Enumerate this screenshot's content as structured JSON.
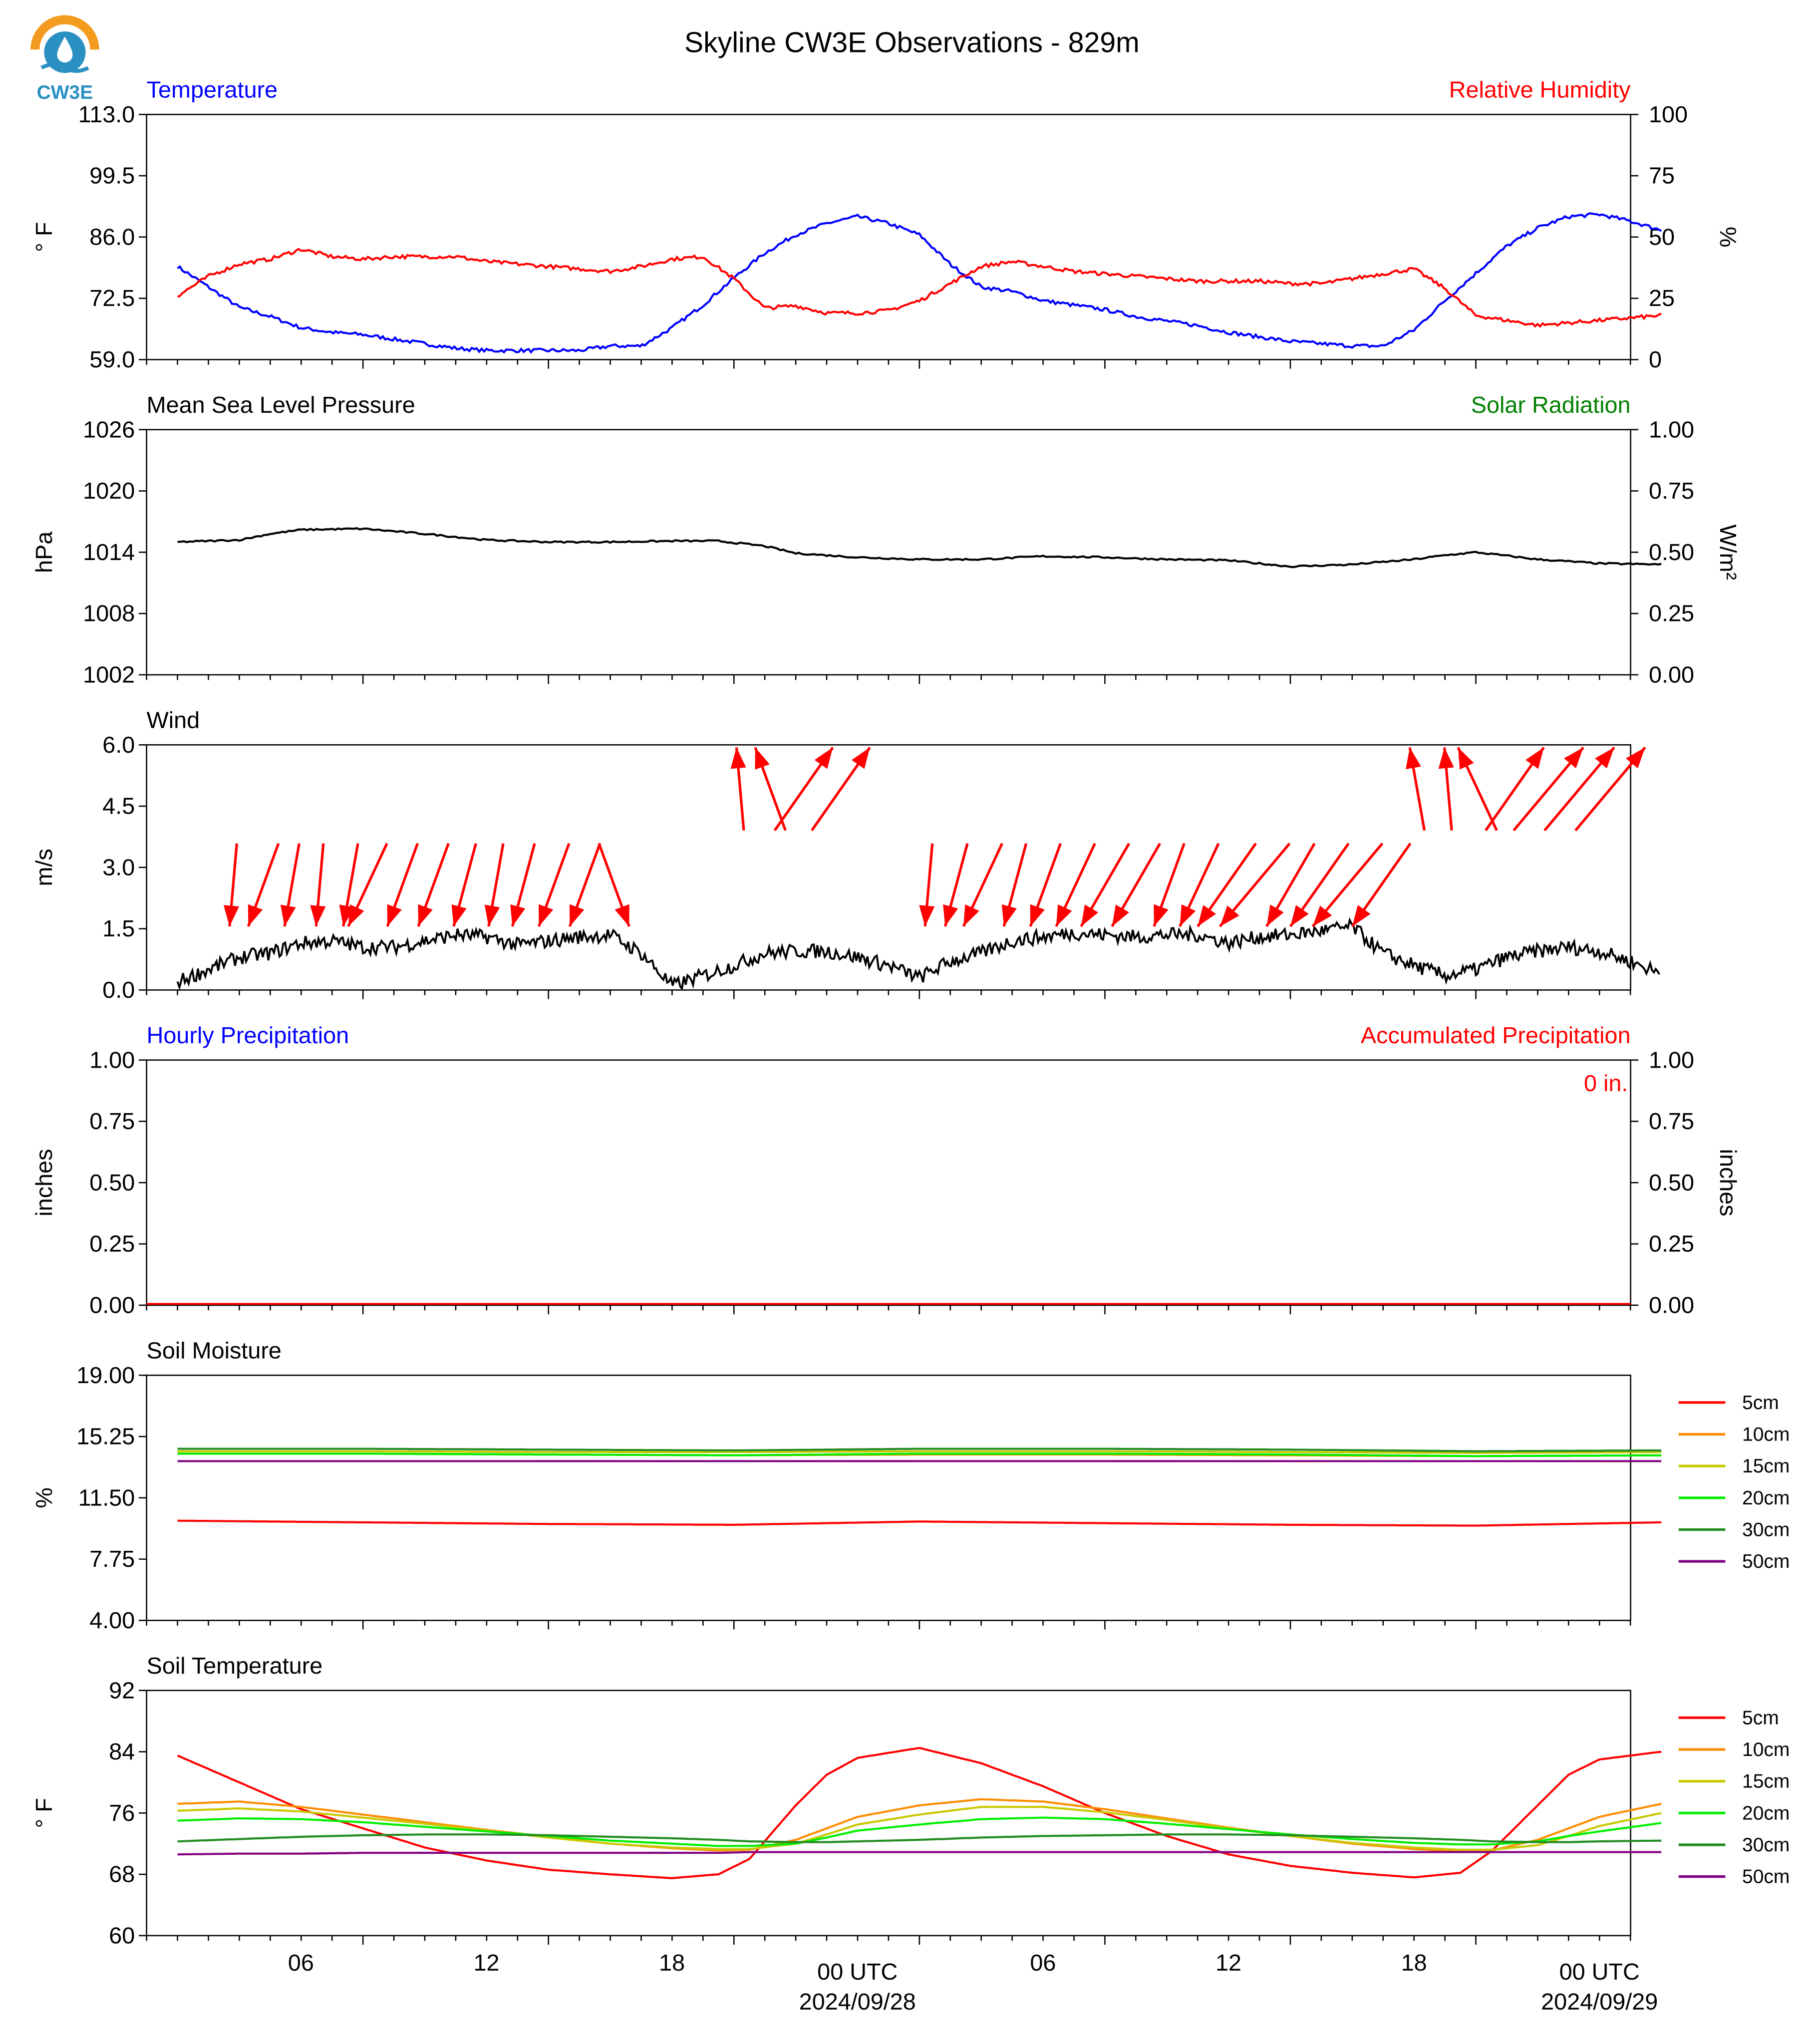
{
  "title": "Skyline CW3E Observations - 829m",
  "logo_text": "CW3E",
  "colors": {
    "temperature": "#0000ff",
    "humidity": "#ff0000",
    "pressure": "#000000",
    "solar": "#008000",
    "wind": "#000000",
    "wind_arrow": "#ff0000",
    "precip_hourly": "#0000ff",
    "precip_accum": "#ff0000",
    "logo_orange": "#f39c1f",
    "logo_blue": "#2a8fc1"
  },
  "x_axis": {
    "tick_labels": [
      "06",
      "12",
      "18",
      "00 UTC",
      "06",
      "12",
      "18",
      "00 UTC"
    ],
    "date_labels": [
      "2024/09/28",
      "2024/09/29"
    ]
  },
  "legend": {
    "depths": [
      "5cm",
      "10cm",
      "15cm",
      "20cm",
      "30cm",
      "50cm"
    ],
    "colors": [
      "#ff0000",
      "#ff8c00",
      "#c8c800",
      "#00ee00",
      "#228b22",
      "#800080"
    ]
  },
  "chart_data": [
    {
      "type": "line",
      "id": "temp_rh",
      "title_left": "Temperature",
      "title_right": "Relative Humidity",
      "ylabel": "° F",
      "ylabel_right": "%",
      "ylim": [
        59.0,
        113.0
      ],
      "yticks": [
        "113.0",
        "99.5",
        "86.0",
        "72.5",
        "59.0"
      ],
      "ylim_right": [
        0,
        100
      ],
      "yticks_right": [
        "100",
        "75",
        "50",
        "25",
        "0"
      ],
      "x_hours": [
        0,
        1,
        2,
        3,
        4,
        5,
        6,
        7,
        8,
        9,
        10,
        11,
        12,
        13,
        14,
        15,
        16,
        17,
        18,
        19,
        20,
        21,
        22,
        23,
        24,
        25,
        26,
        27,
        28,
        29,
        30,
        31,
        32,
        33,
        34,
        35,
        36,
        37,
        38,
        39,
        40,
        41,
        42,
        43,
        44,
        45,
        46,
        47,
        48
      ],
      "series": [
        {
          "name": "Temperature",
          "axis": "left",
          "values": [
            79.5,
            75,
            70.5,
            68.5,
            66,
            65,
            64.5,
            63.5,
            62.5,
            61.5,
            61,
            61,
            61,
            61,
            62,
            62,
            66,
            71,
            77,
            82.5,
            86.5,
            89,
            90.5,
            89,
            86.5,
            80,
            75,
            74,
            72,
            71,
            70,
            68.5,
            67.5,
            66.5,
            65,
            64,
            63,
            62.5,
            62,
            62,
            65.5,
            72,
            78,
            84,
            88,
            90.5,
            91,
            89.5,
            87.5
          ]
        },
        {
          "name": "Relative Humidity",
          "axis": "right",
          "values": [
            26,
            34,
            39,
            41,
            45,
            42,
            41,
            42,
            42,
            42,
            40,
            39,
            38,
            37,
            36,
            38,
            41,
            42,
            33,
            21,
            22,
            19,
            19,
            20,
            24,
            31,
            38,
            40,
            38,
            36,
            35,
            34,
            33,
            32,
            32,
            32,
            31,
            31,
            33,
            35,
            37,
            29,
            18,
            16,
            14,
            15,
            16,
            17,
            18
          ]
        }
      ]
    },
    {
      "type": "line",
      "id": "pressure",
      "title_left": "Mean Sea Level Pressure",
      "title_right": "Solar Radiation",
      "ylabel": "hPa",
      "ylabel_right": "W/m²",
      "ylim": [
        1002,
        1026
      ],
      "yticks": [
        "1026",
        "1020",
        "1014",
        "1008",
        "1002"
      ],
      "ylim_right": [
        0,
        1
      ],
      "yticks_right": [
        "1.00",
        "0.75",
        "0.50",
        "0.25",
        "0.00"
      ],
      "x_hours": [
        0,
        2,
        3,
        4,
        6,
        8,
        10,
        12,
        14,
        16,
        17.5,
        19,
        20,
        22,
        24,
        26,
        28,
        30,
        32,
        34,
        36,
        38,
        40,
        41,
        42,
        44,
        46,
        48
      ],
      "series": [
        {
          "name": "Mean Sea Level Pressure",
          "axis": "left",
          "values": [
            1015,
            1015.2,
            1015.8,
            1016.2,
            1016.3,
            1015.8,
            1015.2,
            1015,
            1015,
            1015.1,
            1015.1,
            1014.6,
            1013.9,
            1013.5,
            1013.3,
            1013.3,
            1013.6,
            1013.5,
            1013.3,
            1013.2,
            1012.6,
            1012.8,
            1013.3,
            1013.7,
            1014,
            1013.3,
            1012.9,
            1012.8
          ]
        }
      ]
    },
    {
      "type": "line",
      "id": "wind",
      "title_left": "Wind",
      "ylabel": "m/s",
      "ylim": [
        0,
        6
      ],
      "yticks": [
        "6.0",
        "4.5",
        "3.0",
        "1.5",
        "0.0"
      ],
      "x_hours": [
        0,
        1,
        2,
        3,
        4,
        5,
        6,
        7,
        8,
        9,
        10,
        11,
        12,
        13,
        14,
        15,
        16,
        17,
        18,
        19,
        20,
        21,
        22,
        23,
        24,
        25,
        26,
        27,
        28,
        29,
        30,
        31,
        32,
        33,
        34,
        35,
        36,
        37,
        38,
        39,
        40,
        41,
        42,
        43,
        44,
        45,
        46,
        47,
        48
      ],
      "series": [
        {
          "name": "Wind speed",
          "axis": "left",
          "values": [
            0.2,
            0.5,
            0.8,
            0.9,
            1.15,
            1.2,
            1.05,
            1.05,
            1.2,
            1.35,
            1.3,
            1.1,
            1.2,
            1.3,
            1.35,
            0.9,
            0.1,
            0.35,
            0.6,
            0.9,
            0.95,
            0.95,
            0.8,
            0.6,
            0.3,
            0.7,
            0.9,
            1.2,
            1.3,
            1.4,
            1.35,
            1.3,
            1.35,
            1.35,
            1.15,
            1.3,
            1.35,
            1.45,
            1.55,
            0.9,
            0.6,
            0.35,
            0.5,
            0.8,
            0.95,
            1.05,
            0.95,
            0.7,
            0.4
          ]
        }
      ],
      "arrows": {
        "note": "direction (degrees the wind blows toward, 0=north/up, 90=east/right) and speed in m/s",
        "x_hours": [
          2,
          3,
          4,
          5,
          6,
          7,
          8,
          9,
          10,
          11,
          12,
          13,
          14,
          15,
          18,
          19,
          20,
          21,
          24,
          25,
          26,
          27,
          28,
          29,
          30,
          31,
          32,
          33,
          34,
          35,
          36,
          37,
          38,
          39,
          40,
          41,
          42,
          43,
          44,
          45,
          46
        ],
        "x_offset": [
          1.8,
          2.8,
          3.7,
          4.6,
          5.6,
          6.2,
          7.3,
          8.3,
          9.3,
          10.3,
          11.2,
          12.2,
          13.2,
          14.1,
          18.2,
          19.2,
          20.1,
          21.3,
          24.3,
          25.2,
          26.1,
          27.1,
          28.1,
          29.1,
          30.1,
          31.1,
          32.1,
          33.1,
          34.1,
          35.1,
          36.1,
          37.1,
          38.1,
          39.1,
          40.1,
          41.1,
          42.1,
          43.1,
          44.1,
          45.1,
          46.1
        ],
        "directions": [
          185,
          200,
          190,
          185,
          190,
          205,
          200,
          200,
          195,
          190,
          195,
          200,
          200,
          160,
          355,
          340,
          35,
          35,
          185,
          195,
          205,
          195,
          200,
          205,
          210,
          210,
          200,
          205,
          215,
          220,
          210,
          215,
          220,
          215,
          350,
          355,
          335,
          35,
          40,
          40,
          40
        ],
        "speeds": [
          1.0,
          1.2,
          1.1,
          1.1,
          1.2,
          1.2,
          1.3,
          1.3,
          1.3,
          1.2,
          1.3,
          1.4,
          1.3,
          1.0,
          0.7,
          0.9,
          0.9,
          0.8,
          0.9,
          1.2,
          1.3,
          1.4,
          1.4,
          1.4,
          1.3,
          1.3,
          1.3,
          1.4,
          1.3,
          1.3,
          1.4,
          1.5,
          1.4,
          1.1,
          0.8,
          0.8,
          1.0,
          1.0,
          1.0,
          0.9,
          0.8
        ]
      }
    },
    {
      "type": "line",
      "id": "precip",
      "title_left": "Hourly Precipitation",
      "title_right": "Accumulated Precipitation",
      "annotation": "0 in.",
      "ylabel": "inches",
      "ylabel_right": "inches",
      "ylim": [
        0,
        1
      ],
      "yticks": [
        "1.00",
        "0.75",
        "0.50",
        "0.25",
        "0.00"
      ],
      "ylim_right": [
        0,
        1
      ],
      "yticks_right": [
        "1.00",
        "0.75",
        "0.50",
        "0.25",
        "0.00"
      ],
      "x_hours": [
        0,
        48
      ],
      "series": [
        {
          "name": "Hourly Precipitation",
          "axis": "left",
          "values": [
            0,
            0
          ]
        },
        {
          "name": "Accumulated Precipitation",
          "axis": "right",
          "values": [
            0,
            0
          ]
        }
      ]
    },
    {
      "type": "line",
      "id": "soil_moisture",
      "title_left": "Soil Moisture",
      "ylabel": "%",
      "ylim": [
        4.0,
        19.0
      ],
      "yticks": [
        "19.00",
        "15.25",
        "11.50",
        "7.75",
        "4.00"
      ],
      "x_hours": [
        0,
        6,
        12,
        18,
        24,
        30,
        36,
        42,
        48
      ],
      "series": [
        {
          "name": "5cm",
          "values": [
            10.1,
            10.0,
            9.9,
            9.85,
            10.05,
            9.95,
            9.85,
            9.8,
            10.0
          ]
        },
        {
          "name": "10cm",
          "values": [
            14.2,
            14.2,
            14.15,
            14.1,
            14.15,
            14.15,
            14.1,
            14.05,
            14.1
          ]
        },
        {
          "name": "15cm",
          "values": [
            14.35,
            14.35,
            14.3,
            14.3,
            14.35,
            14.35,
            14.3,
            14.25,
            14.3
          ]
        },
        {
          "name": "20cm",
          "values": [
            14.2,
            14.2,
            14.15,
            14.1,
            14.2,
            14.2,
            14.15,
            14.05,
            14.1
          ]
        },
        {
          "name": "30cm",
          "values": [
            14.5,
            14.5,
            14.45,
            14.4,
            14.5,
            14.5,
            14.45,
            14.35,
            14.4
          ]
        },
        {
          "name": "50cm",
          "values": [
            13.75,
            13.75,
            13.75,
            13.75,
            13.75,
            13.75,
            13.75,
            13.75,
            13.75
          ]
        }
      ]
    },
    {
      "type": "line",
      "id": "soil_temp",
      "title_left": "Soil Temperature",
      "ylabel": "° F",
      "ylim": [
        60,
        92
      ],
      "yticks": [
        "92",
        "84",
        "76",
        "68",
        "60"
      ],
      "x_hours": [
        0,
        2,
        4,
        6,
        8,
        10,
        12,
        14,
        16,
        17.5,
        18.5,
        20,
        21,
        22,
        24,
        26,
        28,
        30,
        32,
        34,
        36,
        38,
        40,
        41.5,
        42.5,
        44,
        45,
        46,
        48
      ],
      "series": [
        {
          "name": "5cm",
          "values": [
            83.5,
            80,
            76.5,
            74,
            71.5,
            69.8,
            68.6,
            68,
            67.5,
            68,
            70,
            77,
            81,
            83.2,
            84.5,
            82.5,
            79.5,
            76,
            73,
            70.6,
            69.1,
            68.2,
            67.6,
            68.2,
            71,
            77,
            81,
            83,
            84
          ]
        },
        {
          "name": "10cm",
          "values": [
            77.2,
            77.5,
            76.8,
            75.8,
            74.8,
            73.8,
            72.9,
            72,
            71.4,
            71.1,
            71.2,
            72.5,
            74,
            75.5,
            77,
            77.8,
            77.5,
            76.5,
            75.3,
            74.1,
            73,
            72,
            71.3,
            71,
            71.1,
            72.5,
            74,
            75.5,
            77.2
          ]
        },
        {
          "name": "15cm",
          "values": [
            76.3,
            76.6,
            76.2,
            75.4,
            74.6,
            73.7,
            72.8,
            72,
            71.5,
            71.3,
            71.3,
            72,
            73.2,
            74.5,
            75.8,
            76.8,
            76.8,
            76.1,
            75.1,
            74,
            73,
            72.1,
            71.5,
            71.2,
            71.2,
            71.8,
            73,
            74.3,
            76
          ]
        },
        {
          "name": "20cm",
          "values": [
            75,
            75.3,
            75.2,
            74.8,
            74.2,
            73.6,
            73,
            72.4,
            72,
            71.7,
            71.7,
            72,
            72.8,
            73.7,
            74.5,
            75.2,
            75.4,
            75.2,
            74.6,
            73.9,
            73.2,
            72.6,
            72.1,
            71.9,
            71.9,
            72.3,
            73,
            73.6,
            74.7
          ]
        },
        {
          "name": "30cm",
          "values": [
            72.3,
            72.6,
            72.9,
            73.1,
            73.2,
            73.2,
            73.1,
            72.9,
            72.7,
            72.5,
            72.3,
            72.2,
            72.2,
            72.3,
            72.5,
            72.8,
            73,
            73.1,
            73.2,
            73.2,
            73.1,
            72.9,
            72.7,
            72.5,
            72.3,
            72.2,
            72.2,
            72.3,
            72.4
          ]
        },
        {
          "name": "50cm",
          "values": [
            70.6,
            70.7,
            70.7,
            70.8,
            70.8,
            70.8,
            70.8,
            70.8,
            70.8,
            70.8,
            70.9,
            70.9,
            70.9,
            70.9,
            70.9,
            70.9,
            70.9,
            70.9,
            70.9,
            70.9,
            70.9,
            70.9,
            70.9,
            70.9,
            70.9,
            70.9,
            70.9,
            70.9,
            70.9
          ]
        }
      ]
    }
  ]
}
